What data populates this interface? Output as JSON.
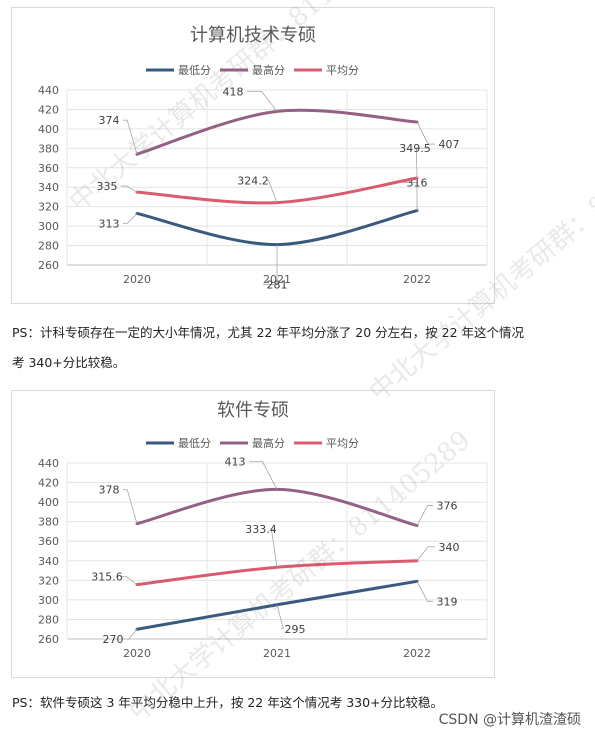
{
  "chart_data": [
    {
      "type": "line",
      "title": "计算机技术专硕",
      "categories": [
        "2020",
        "2021",
        "2022"
      ],
      "ylim": [
        260,
        440
      ],
      "yticks": [
        260,
        280,
        300,
        320,
        340,
        360,
        380,
        400,
        420,
        440
      ],
      "legend_position": "top",
      "grid": true,
      "series": [
        {
          "name": "最低分",
          "values": [
            313,
            281,
            316
          ],
          "labels": [
            "313",
            "281",
            "316"
          ],
          "color": "#3a5a7d"
        },
        {
          "name": "最高分",
          "values": [
            374,
            418,
            407
          ],
          "labels": [
            "374",
            "418",
            "407"
          ],
          "color": "#946084"
        },
        {
          "name": "平均分",
          "values": [
            335,
            324.2,
            349.5
          ],
          "labels": [
            "335",
            "324.2",
            "349.5"
          ],
          "color": "#d95b6c"
        }
      ]
    },
    {
      "type": "line",
      "title": "软件专硕",
      "categories": [
        "2020",
        "2021",
        "2022"
      ],
      "ylim": [
        260,
        440
      ],
      "yticks": [
        260,
        280,
        300,
        320,
        340,
        360,
        380,
        400,
        420,
        440
      ],
      "legend_position": "top",
      "grid": true,
      "series": [
        {
          "name": "最低分",
          "values": [
            270,
            295,
            319
          ],
          "labels": [
            "270",
            "295",
            "319"
          ],
          "color": "#3a5a7d"
        },
        {
          "name": "最高分",
          "values": [
            378,
            413,
            376
          ],
          "labels": [
            "378",
            "413",
            "376"
          ],
          "color": "#946084"
        },
        {
          "name": "平均分",
          "values": [
            315.6,
            333.4,
            340
          ],
          "labels": [
            "315.6",
            "333.4",
            "340"
          ],
          "color": "#d95b6c"
        }
      ]
    }
  ],
  "notes": {
    "note1_line1": "PS：计科专硕存在一定的大小年情况，尤其 22 年平均分涨了 20 分左右，按 22 年这个情况",
    "note1_line2": "考 340+分比较稳。",
    "note2": "PS：软件专硕这 3 年平均分稳中上升，按 22 年这个情况考 330+分比较稳。"
  },
  "watermarks": {
    "w1": "中北大学计算机考研群：811405289",
    "w2": "中北大学计算机考研群：811405289",
    "w3": "中北大学计算机考研群：811405289"
  },
  "footer": {
    "csdn": "CSDN @计算机渣渣硕"
  }
}
